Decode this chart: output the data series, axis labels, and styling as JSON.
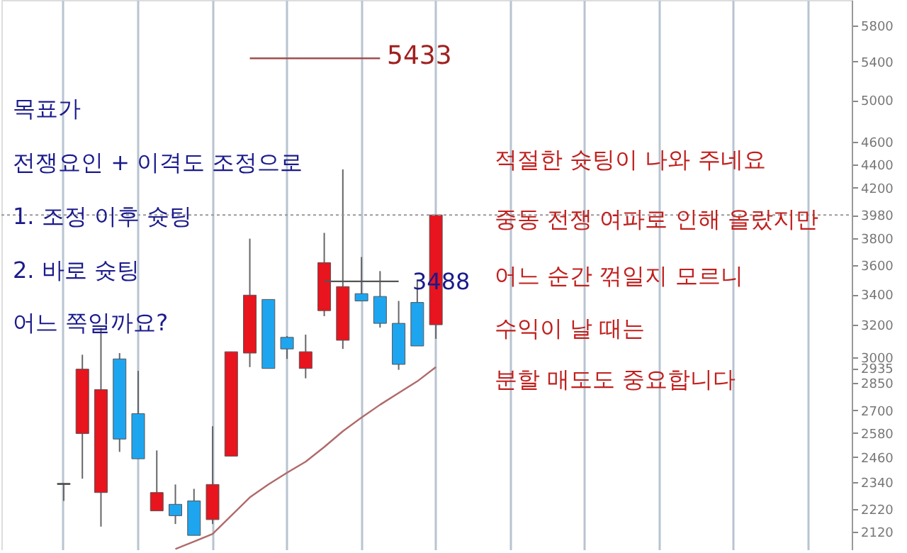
{
  "chart_data": {
    "type": "candlestick",
    "categories": [
      null,
      null,
      null,
      null,
      null,
      null,
      null,
      null,
      null,
      null,
      null,
      null,
      null,
      null,
      null,
      null,
      null,
      null,
      null,
      null,
      null,
      null,
      null,
      null,
      null,
      null,
      null,
      null,
      null,
      null,
      null,
      null,
      null,
      null,
      null,
      null,
      null,
      null,
      null,
      null,
      null,
      null,
      null,
      null,
      null,
      null
    ],
    "ohlc": [
      null,
      null,
      null,
      [
        2335,
        2335,
        2255,
        2330
      ],
      [
        2578,
        3015,
        2357,
        2930
      ],
      [
        2293,
        3180,
        2143,
        2813
      ],
      [
        2990,
        3025,
        2486,
        2550
      ],
      [
        2682,
        2920,
        2452,
        2452
      ],
      [
        2211,
        2493,
        2211,
        2293
      ],
      [
        2240,
        2330,
        2154,
        2190
      ],
      [
        2255,
        2310,
        2106,
        2106
      ],
      [
        2173,
        2616,
        2154,
        2330
      ],
      [
        2465,
        3033,
        2465,
        3033
      ],
      [
        3025,
        3797,
        2942,
        3394
      ],
      [
        3365,
        3365,
        2934,
        2934
      ],
      [
        3121,
        3129,
        2990,
        3050
      ],
      [
        2934,
        3138,
        2877,
        3033
      ],
      [
        3291,
        3841,
        3255,
        3620
      ],
      [
        3103,
        4357,
        3050,
        3452
      ],
      [
        3404,
        3661,
        3355,
        3355
      ],
      [
        3385,
        3560,
        3182,
        3209
      ],
      [
        3209,
        3355,
        2926,
        2958
      ],
      [
        3345,
        3500,
        3068,
        3068
      ],
      [
        3200,
        3980,
        3112,
        3980
      ],
      null,
      null,
      null,
      null,
      null,
      null,
      null,
      null,
      null,
      null,
      null,
      null,
      null,
      null,
      null,
      null,
      null,
      null,
      null,
      null,
      null,
      null
    ],
    "colors": [
      null,
      null,
      null,
      "#333333",
      "#e8141e",
      "#e8141e",
      "#1ea5f0",
      "#1ea5f0",
      "#e8141e",
      "#1ea5f0",
      "#1ea5f0",
      "#e8141e",
      "#e8141e",
      "#e8141e",
      "#1ea5f0",
      "#1ea5f0",
      "#e8141e",
      "#e8141e",
      "#e8141e",
      "#1ea5f0",
      "#1ea5f0",
      "#1ea5f0",
      "#1ea5f0",
      "#e8141e",
      null,
      null,
      null,
      null,
      null,
      null,
      null,
      null,
      null,
      null,
      null,
      null,
      null,
      null,
      null,
      null,
      null,
      null,
      null,
      null,
      null,
      null
    ],
    "series": [
      {
        "type": "line",
        "color": "#b06a6a",
        "values": [
          null,
          null,
          null,
          null,
          null,
          null,
          null,
          null,
          null,
          2050,
          2080,
          2112,
          2190,
          2271,
          2330,
          2385,
          2438,
          2510,
          2590,
          2661,
          2730,
          2795,
          2860,
          2942,
          null,
          null,
          null,
          null,
          null,
          null,
          null,
          null,
          null,
          null,
          null,
          null,
          null,
          null,
          null,
          null,
          null,
          null,
          null,
          null,
          null,
          null
        ]
      },
      {
        "type": "line",
        "color": "#a05050",
        "values": [
          null,
          null,
          null,
          null,
          null,
          null,
          null,
          null,
          null,
          null,
          null,
          null,
          null,
          5433,
          5433,
          5433,
          5433,
          5433,
          5433,
          5433,
          5433,
          null,
          null,
          null,
          null,
          null,
          null,
          null,
          null,
          null,
          null,
          null,
          null,
          null,
          null,
          null,
          null,
          null,
          null,
          null,
          null,
          null,
          null,
          null,
          null,
          null
        ]
      },
      {
        "type": "line",
        "color": "#555555",
        "values": [
          null,
          null,
          null,
          null,
          null,
          null,
          null,
          null,
          null,
          null,
          null,
          null,
          null,
          null,
          null,
          null,
          null,
          3488,
          3488,
          3488,
          3488,
          3488,
          null,
          null,
          null,
          null,
          null,
          null,
          null,
          null,
          null,
          null,
          null,
          null,
          null,
          null,
          null,
          null,
          null,
          null,
          null,
          null,
          null,
          null,
          null,
          null
        ]
      }
    ],
    "ylim": [
      2045,
      6100
    ],
    "yticks": [
      5800,
      5400,
      5000,
      4600,
      4400,
      4200,
      3980,
      3800,
      3600,
      3400,
      3200,
      3000,
      2935,
      2850,
      2700,
      2580,
      2460,
      2340,
      2220,
      2120
    ],
    "log": true,
    "grid": "x",
    "tick_labels": "y",
    "ref_lines": [
      {
        "axis": "y",
        "value": 3980,
        "line_style": "dotted",
        "color": "#999999"
      }
    ],
    "annotations": [
      "목표가",
      "전쟁요인 + 이격도 조정으로",
      "1. 조정 이후 슛팅",
      "2. 바로 슛팅",
      "어느 쪽일까요?",
      "적절한 슛팅이 나와 주네요",
      "중동 전쟁 여파로 인해 올랐지만",
      "어느 순간 꺾일지 모르니",
      "수익이 날 때는",
      "분할 매도도 중요합니다",
      "5433",
      "3488"
    ]
  }
}
